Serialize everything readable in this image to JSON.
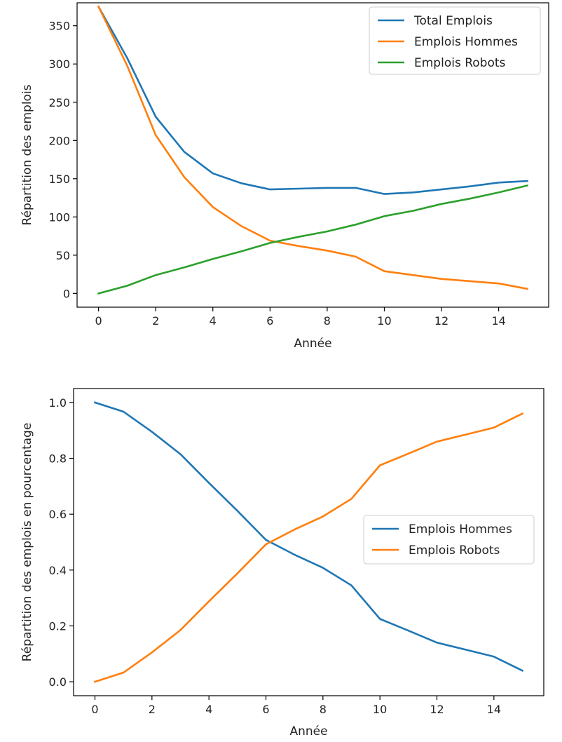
{
  "chart_data": [
    {
      "type": "line",
      "xlabel": "Année",
      "ylabel": "Répartition des emplois",
      "xlim": [
        -0.75,
        15.75
      ],
      "ylim": [
        -18,
        380
      ],
      "xticks": [
        0,
        2,
        4,
        6,
        8,
        10,
        12,
        14
      ],
      "yticks": [
        0,
        50,
        100,
        150,
        200,
        250,
        300,
        350
      ],
      "grid": false,
      "legend_position": "top-right",
      "x": [
        0,
        1,
        2,
        3,
        4,
        5,
        6,
        7,
        8,
        9,
        10,
        11,
        12,
        13,
        14,
        15
      ],
      "series": [
        {
          "name": "Total Emplois",
          "color": "#1f77b4",
          "values": [
            375,
            308,
            231,
            185,
            157,
            144,
            136,
            137,
            138,
            138,
            130,
            132,
            136,
            140,
            145,
            147
          ]
        },
        {
          "name": "Emplois Hommes",
          "color": "#ff7f0e",
          "values": [
            375,
            298,
            207,
            152,
            113,
            88,
            69,
            62,
            56,
            48,
            29,
            24,
            19,
            16,
            13,
            6
          ]
        },
        {
          "name": "Emplois Robots",
          "color": "#2ca02c",
          "values": [
            0,
            10,
            24,
            34,
            45,
            55,
            66,
            74,
            81,
            90,
            101,
            108,
            117,
            124,
            132,
            141
          ]
        }
      ]
    },
    {
      "type": "line",
      "xlabel": "Année",
      "ylabel": "Répartition des emplois en pourcentage",
      "xlim": [
        -0.75,
        15.75
      ],
      "ylim": [
        -0.05,
        1.05
      ],
      "xticks": [
        0,
        2,
        4,
        6,
        8,
        10,
        12,
        14
      ],
      "yticks": [
        0.0,
        0.2,
        0.4,
        0.6,
        0.8,
        1.0
      ],
      "ytick_format": 1,
      "grid": false,
      "legend_position": "center-right",
      "x": [
        0,
        1,
        2,
        3,
        4,
        5,
        6,
        7,
        8,
        9,
        10,
        11,
        12,
        13,
        14,
        15
      ],
      "series": [
        {
          "name": "Emplois Hommes",
          "color": "#1f77b4",
          "values": [
            1.0,
            0.967,
            0.895,
            0.815,
            0.712,
            0.612,
            0.508,
            0.455,
            0.408,
            0.345,
            0.225,
            0.183,
            0.14,
            0.115,
            0.09,
            0.04
          ]
        },
        {
          "name": "Emplois Robots",
          "color": "#ff7f0e",
          "values": [
            0.0,
            0.033,
            0.105,
            0.185,
            0.288,
            0.388,
            0.492,
            0.545,
            0.592,
            0.655,
            0.775,
            0.817,
            0.86,
            0.885,
            0.91,
            0.96
          ]
        }
      ]
    }
  ]
}
